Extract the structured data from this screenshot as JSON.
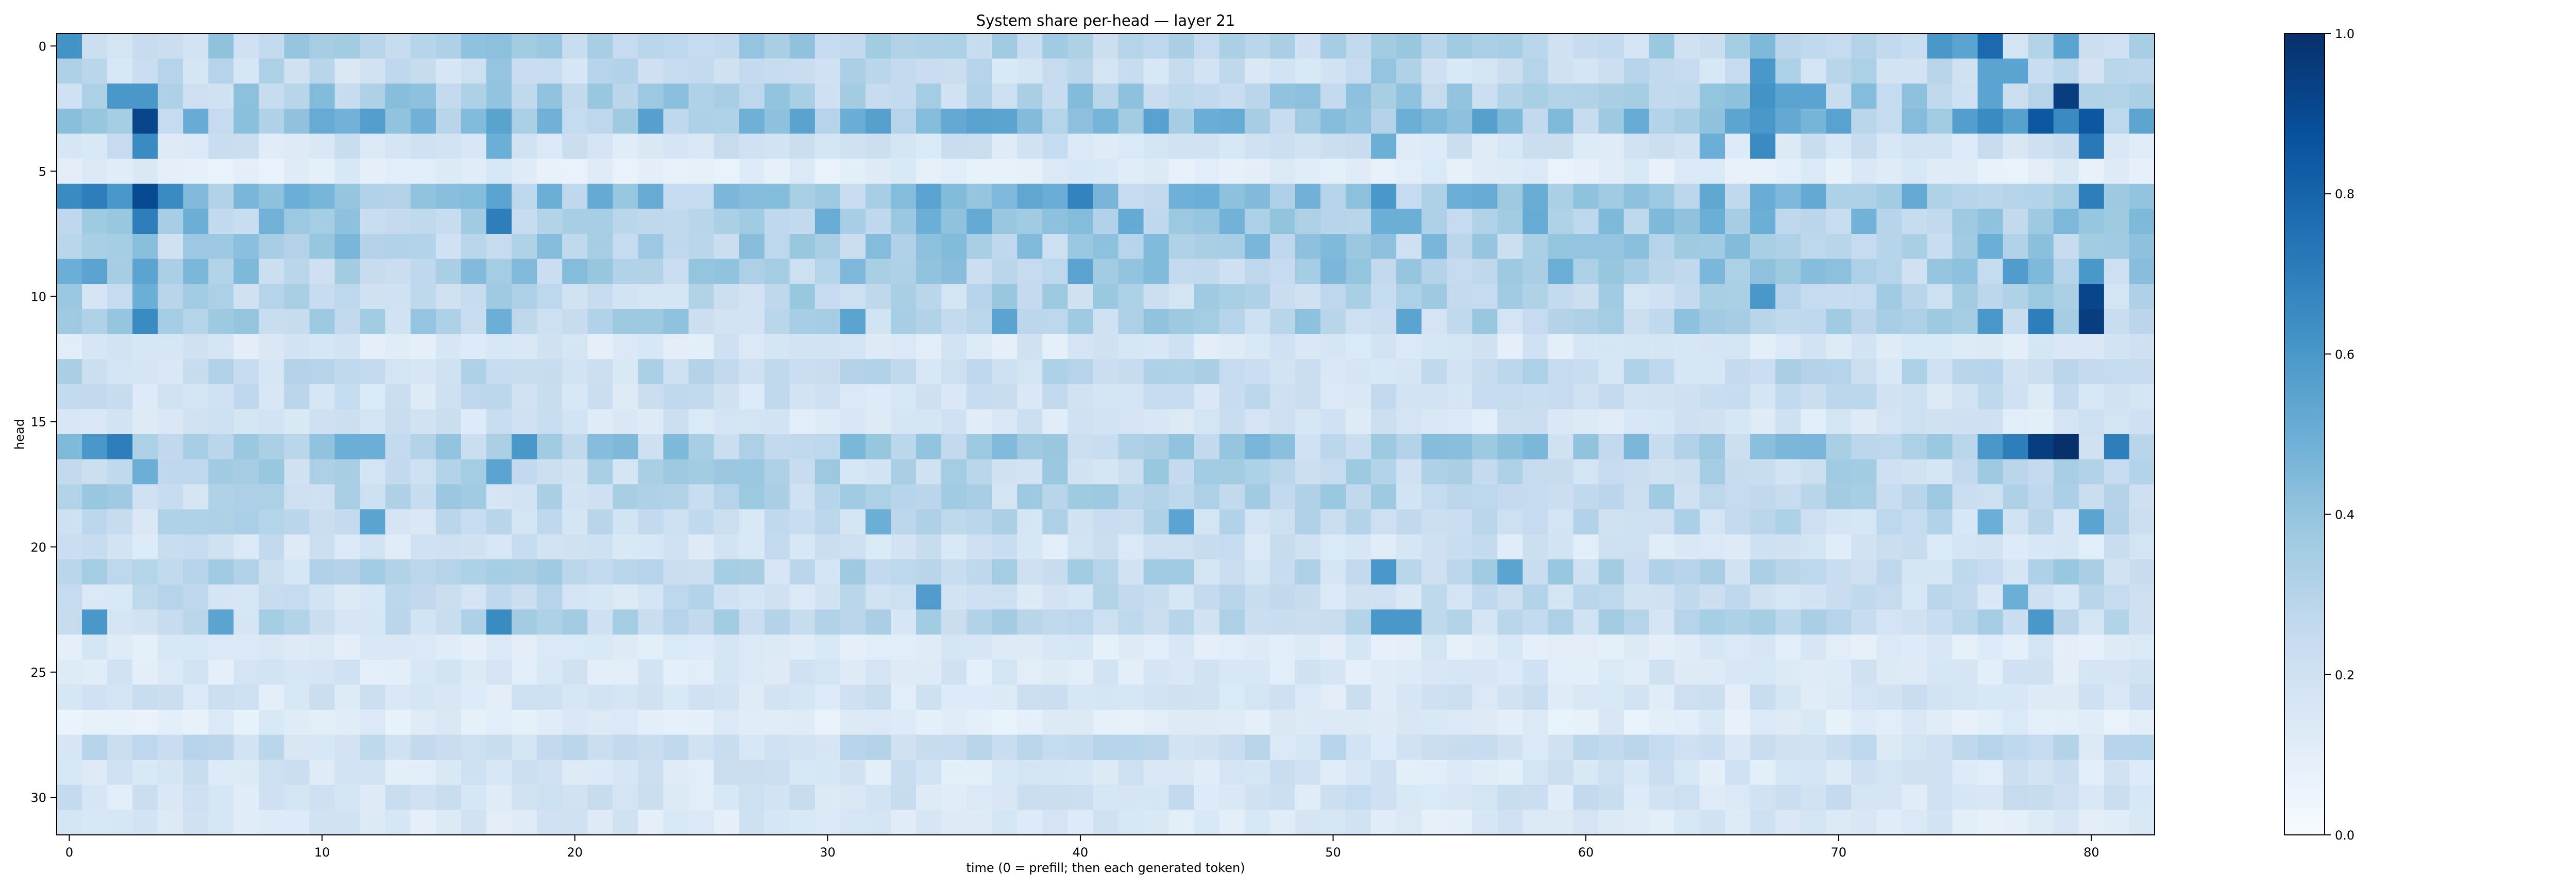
{
  "chart_data": {
    "type": "heatmap",
    "title": "System share per-head — layer 21",
    "xlabel": "time (0 = prefill; then each generated token)",
    "ylabel": "head",
    "x_range": [
      0,
      82
    ],
    "y_range": [
      0,
      31
    ],
    "x_ticks": [
      0,
      10,
      20,
      30,
      40,
      50,
      60,
      70,
      80
    ],
    "y_ticks": [
      0,
      5,
      10,
      15,
      20,
      25,
      30
    ],
    "colormap": "Blues",
    "colorbar": {
      "min": 0.0,
      "max": 1.0,
      "ticks": [
        "0.0",
        "0.2",
        "0.4",
        "0.6",
        "0.8",
        "1.0"
      ]
    },
    "n_heads": 32,
    "n_steps": 83,
    "baseline": [
      0.32,
      0.26,
      0.34,
      0.44,
      0.2,
      0.12,
      0.42,
      0.4,
      0.36,
      0.36,
      0.3,
      0.32,
      0.16,
      0.26,
      0.22,
      0.18,
      0.36,
      0.3,
      0.3,
      0.26,
      0.2,
      0.3,
      0.24,
      0.28,
      0.14,
      0.16,
      0.18,
      0.12,
      0.24,
      0.18,
      0.2,
      0.16
    ],
    "highlights": [
      {
        "head": 0,
        "t": 0,
        "v": 0.62
      },
      {
        "head": 0,
        "t": 17,
        "v": 0.42
      },
      {
        "head": 0,
        "t": 52,
        "v": 0.36
      },
      {
        "head": 0,
        "t": 67,
        "v": 0.45
      },
      {
        "head": 0,
        "t": 74,
        "v": 0.6
      },
      {
        "head": 0,
        "t": 75,
        "v": 0.55
      },
      {
        "head": 0,
        "t": 76,
        "v": 0.78
      },
      {
        "head": 0,
        "t": 79,
        "v": 0.55
      },
      {
        "head": 1,
        "t": 17,
        "v": 0.4
      },
      {
        "head": 1,
        "t": 52,
        "v": 0.4
      },
      {
        "head": 1,
        "t": 67,
        "v": 0.6
      },
      {
        "head": 1,
        "t": 76,
        "v": 0.55
      },
      {
        "head": 1,
        "t": 77,
        "v": 0.55
      },
      {
        "head": 2,
        "t": 2,
        "v": 0.6
      },
      {
        "head": 2,
        "t": 3,
        "v": 0.6
      },
      {
        "head": 2,
        "t": 67,
        "v": 0.62
      },
      {
        "head": 2,
        "t": 68,
        "v": 0.55
      },
      {
        "head": 2,
        "t": 69,
        "v": 0.55
      },
      {
        "head": 2,
        "t": 76,
        "v": 0.55
      },
      {
        "head": 2,
        "t": 79,
        "v": 0.95
      },
      {
        "head": 3,
        "t": 3,
        "v": 0.92
      },
      {
        "head": 3,
        "t": 53,
        "v": 0.5
      },
      {
        "head": 3,
        "t": 57,
        "v": 0.45
      },
      {
        "head": 3,
        "t": 67,
        "v": 0.6
      },
      {
        "head": 3,
        "t": 76,
        "v": 0.65
      },
      {
        "head": 3,
        "t": 78,
        "v": 0.85
      },
      {
        "head": 3,
        "t": 79,
        "v": 0.65
      },
      {
        "head": 3,
        "t": 80,
        "v": 0.85
      },
      {
        "head": 4,
        "t": 3,
        "v": 0.65
      },
      {
        "head": 4,
        "t": 17,
        "v": 0.5
      },
      {
        "head": 4,
        "t": 52,
        "v": 0.5
      },
      {
        "head": 4,
        "t": 65,
        "v": 0.5
      },
      {
        "head": 4,
        "t": 67,
        "v": 0.65
      },
      {
        "head": 4,
        "t": 80,
        "v": 0.72
      },
      {
        "head": 6,
        "t": 0,
        "v": 0.65
      },
      {
        "head": 6,
        "t": 1,
        "v": 0.7
      },
      {
        "head": 6,
        "t": 2,
        "v": 0.6
      },
      {
        "head": 6,
        "t": 3,
        "v": 0.9
      },
      {
        "head": 6,
        "t": 4,
        "v": 0.65
      },
      {
        "head": 6,
        "t": 9,
        "v": 0.5
      },
      {
        "head": 6,
        "t": 17,
        "v": 0.55
      },
      {
        "head": 6,
        "t": 34,
        "v": 0.55
      },
      {
        "head": 6,
        "t": 40,
        "v": 0.68
      },
      {
        "head": 6,
        "t": 45,
        "v": 0.5
      },
      {
        "head": 6,
        "t": 52,
        "v": 0.6
      },
      {
        "head": 6,
        "t": 80,
        "v": 0.7
      },
      {
        "head": 7,
        "t": 3,
        "v": 0.7
      },
      {
        "head": 7,
        "t": 17,
        "v": 0.7
      },
      {
        "head": 7,
        "t": 52,
        "v": 0.5
      },
      {
        "head": 7,
        "t": 53,
        "v": 0.5
      },
      {
        "head": 7,
        "t": 65,
        "v": 0.5
      },
      {
        "head": 7,
        "t": 67,
        "v": 0.5
      },
      {
        "head": 8,
        "t": 60,
        "v": 0.4
      },
      {
        "head": 8,
        "t": 76,
        "v": 0.5
      },
      {
        "head": 9,
        "t": 0,
        "v": 0.5
      },
      {
        "head": 9,
        "t": 1,
        "v": 0.55
      },
      {
        "head": 9,
        "t": 3,
        "v": 0.55
      },
      {
        "head": 9,
        "t": 40,
        "v": 0.55
      },
      {
        "head": 9,
        "t": 59,
        "v": 0.5
      },
      {
        "head": 9,
        "t": 77,
        "v": 0.58
      },
      {
        "head": 9,
        "t": 80,
        "v": 0.6
      },
      {
        "head": 10,
        "t": 3,
        "v": 0.5
      },
      {
        "head": 10,
        "t": 67,
        "v": 0.6
      },
      {
        "head": 10,
        "t": 80,
        "v": 0.92
      },
      {
        "head": 11,
        "t": 3,
        "v": 0.65
      },
      {
        "head": 11,
        "t": 17,
        "v": 0.5
      },
      {
        "head": 11,
        "t": 31,
        "v": 0.55
      },
      {
        "head": 11,
        "t": 37,
        "v": 0.55
      },
      {
        "head": 11,
        "t": 53,
        "v": 0.55
      },
      {
        "head": 11,
        "t": 76,
        "v": 0.6
      },
      {
        "head": 11,
        "t": 78,
        "v": 0.7
      },
      {
        "head": 11,
        "t": 80,
        "v": 0.95
      },
      {
        "head": 16,
        "t": 1,
        "v": 0.6
      },
      {
        "head": 16,
        "t": 2,
        "v": 0.7
      },
      {
        "head": 16,
        "t": 11,
        "v": 0.5
      },
      {
        "head": 16,
        "t": 12,
        "v": 0.5
      },
      {
        "head": 16,
        "t": 18,
        "v": 0.6
      },
      {
        "head": 16,
        "t": 76,
        "v": 0.6
      },
      {
        "head": 16,
        "t": 77,
        "v": 0.7
      },
      {
        "head": 16,
        "t": 78,
        "v": 0.95
      },
      {
        "head": 16,
        "t": 79,
        "v": 1.0
      },
      {
        "head": 16,
        "t": 81,
        "v": 0.7
      },
      {
        "head": 17,
        "t": 3,
        "v": 0.5
      },
      {
        "head": 17,
        "t": 17,
        "v": 0.55
      },
      {
        "head": 19,
        "t": 12,
        "v": 0.55
      },
      {
        "head": 19,
        "t": 32,
        "v": 0.5
      },
      {
        "head": 19,
        "t": 44,
        "v": 0.55
      },
      {
        "head": 19,
        "t": 76,
        "v": 0.5
      },
      {
        "head": 19,
        "t": 80,
        "v": 0.55
      },
      {
        "head": 21,
        "t": 52,
        "v": 0.6
      },
      {
        "head": 21,
        "t": 57,
        "v": 0.55
      },
      {
        "head": 22,
        "t": 34,
        "v": 0.58
      },
      {
        "head": 22,
        "t": 77,
        "v": 0.5
      },
      {
        "head": 23,
        "t": 1,
        "v": 0.6
      },
      {
        "head": 23,
        "t": 6,
        "v": 0.55
      },
      {
        "head": 23,
        "t": 17,
        "v": 0.65
      },
      {
        "head": 23,
        "t": 52,
        "v": 0.6
      },
      {
        "head": 23,
        "t": 53,
        "v": 0.6
      },
      {
        "head": 23,
        "t": 78,
        "v": 0.6
      }
    ]
  }
}
